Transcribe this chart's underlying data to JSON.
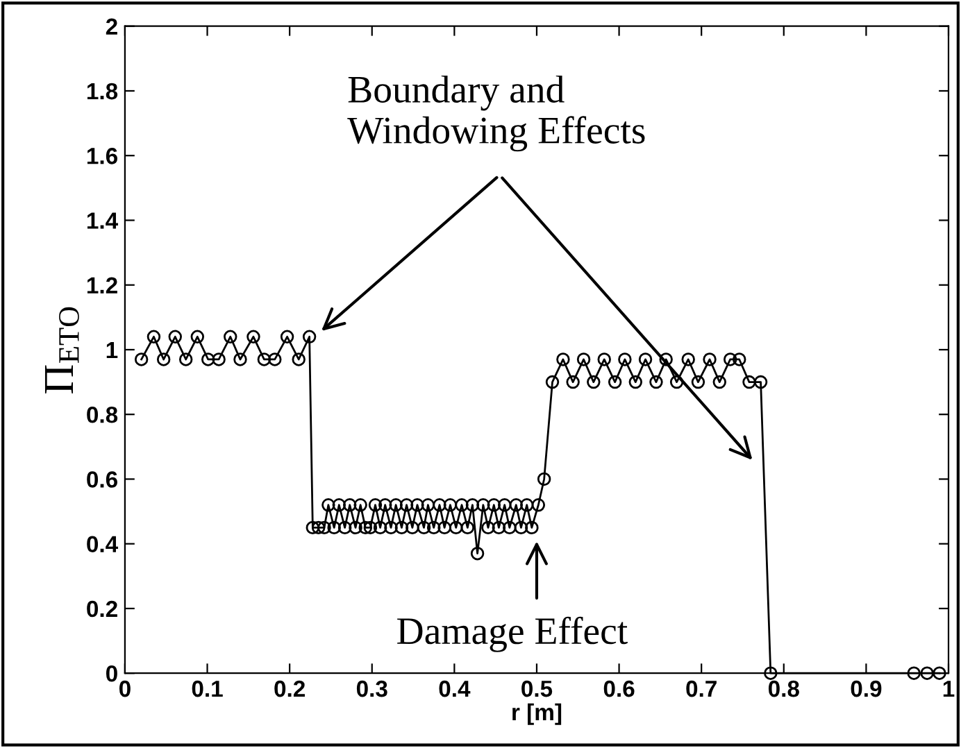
{
  "chart_data": {
    "type": "line",
    "xlabel": "r [m]",
    "ylabel": "Π$_{ETO}$",
    "x": [
      0.02,
      0.035,
      0.047,
      0.061,
      0.074,
      0.088,
      0.101,
      0.114,
      0.128,
      0.14,
      0.156,
      0.169,
      0.182,
      0.197,
      0.211,
      0.224,
      0.228,
      0.235,
      0.242,
      0.247,
      0.254,
      0.26,
      0.267,
      0.273,
      0.28,
      0.286,
      0.292,
      0.298,
      0.304,
      0.31,
      0.316,
      0.323,
      0.329,
      0.336,
      0.342,
      0.349,
      0.355,
      0.363,
      0.368,
      0.375,
      0.382,
      0.388,
      0.395,
      0.402,
      0.409,
      0.416,
      0.422,
      0.428,
      0.435,
      0.441,
      0.448,
      0.454,
      0.461,
      0.467,
      0.475,
      0.481,
      0.488,
      0.494,
      0.502,
      0.509,
      0.519,
      0.532,
      0.544,
      0.557,
      0.569,
      0.582,
      0.595,
      0.607,
      0.62,
      0.632,
      0.645,
      0.657,
      0.67,
      0.684,
      0.696,
      0.71,
      0.722,
      0.735,
      0.746,
      0.758,
      0.772,
      0.784,
      0.958,
      0.974,
      0.989
    ],
    "series": [
      {
        "color": "#000000",
        "values": [
          0.97,
          1.04,
          0.97,
          1.04,
          0.97,
          1.04,
          0.97,
          0.97,
          1.04,
          0.97,
          1.04,
          0.97,
          0.97,
          1.04,
          0.97,
          1.04,
          0.45,
          0.45,
          0.45,
          0.52,
          0.45,
          0.52,
          0.45,
          0.52,
          0.45,
          0.52,
          0.45,
          0.45,
          0.52,
          0.45,
          0.52,
          0.45,
          0.52,
          0.45,
          0.52,
          0.45,
          0.52,
          0.45,
          0.52,
          0.45,
          0.52,
          0.45,
          0.52,
          0.45,
          0.52,
          0.45,
          0.52,
          0.37,
          0.52,
          0.45,
          0.52,
          0.45,
          0.52,
          0.45,
          0.52,
          0.45,
          0.52,
          0.45,
          0.52,
          0.6,
          0.9,
          0.97,
          0.9,
          0.97,
          0.9,
          0.97,
          0.9,
          0.97,
          0.9,
          0.97,
          0.9,
          0.97,
          0.9,
          0.97,
          0.9,
          0.97,
          0.9,
          0.97,
          0.97,
          0.9,
          0.9,
          0,
          0,
          0,
          0
        ]
      }
    ],
    "marker": "circle",
    "line_style": "solid",
    "grid": false,
    "xlim": [
      0,
      1
    ],
    "xticks": [
      0,
      0.1,
      0.2,
      0.3,
      0.4,
      0.5,
      0.6,
      0.7,
      0.8,
      0.9,
      1
    ],
    "ylim": [
      0,
      2
    ],
    "yticks": [
      0,
      0.2,
      0.4,
      0.6,
      0.8,
      1,
      1.2,
      1.4,
      1.6,
      1.8,
      2
    ],
    "annotations": [
      "Boundary and\nWindowing Effects",
      "Damage Effect"
    ]
  }
}
